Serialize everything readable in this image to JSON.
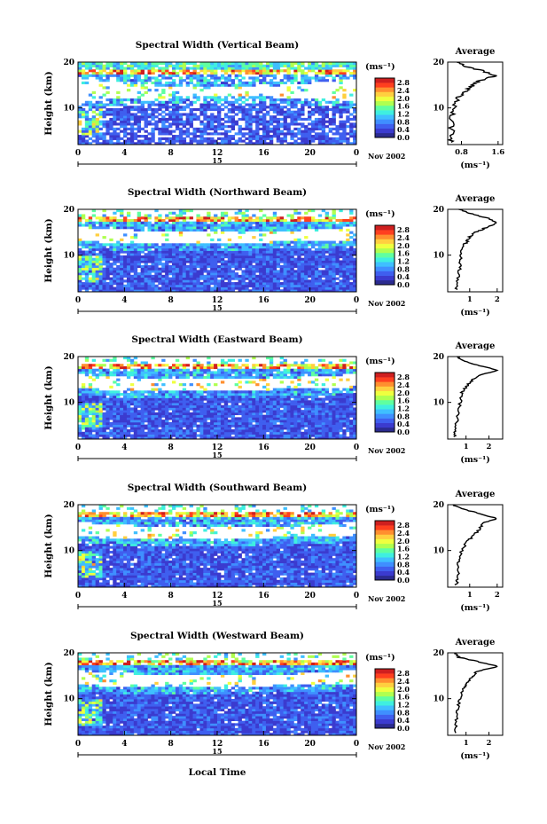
{
  "colorbar": {
    "unit": "(ms⁻¹)",
    "ticks": [
      "0.0",
      "0.4",
      "0.8",
      "1.2",
      "1.6",
      "2.0",
      "2.4",
      "2.8"
    ],
    "colors": [
      "#2b2b8f",
      "#3b3bcf",
      "#3f5fef",
      "#3f8fff",
      "#3fbfff",
      "#3fefe0",
      "#5fffa0",
      "#afff50",
      "#efff3f",
      "#ffcf3f",
      "#ff8f2f",
      "#ff3f1f",
      "#cf1f1f"
    ]
  },
  "common": {
    "x_tick_labels": [
      "0",
      "4",
      "8",
      "12",
      "16",
      "20",
      "0"
    ],
    "x_date_day": "15",
    "x_month_year": "Nov 2002",
    "xlabel": "Local Time",
    "ylabel": "Height (km)",
    "y_tick_labels": [
      "10",
      "20"
    ],
    "average_title": "Average",
    "average_xlabel": "(ms⁻¹)"
  },
  "chart_data": [
    {
      "type": "heatmap",
      "title": "Spectral Width (Vertical Beam)",
      "x_range": [
        0,
        24
      ],
      "y_range": [
        2,
        20
      ],
      "color_range": [
        0,
        3.0
      ],
      "average": {
        "type": "line",
        "title": "Average",
        "x_ticks": [
          "0.8",
          "1.6"
        ],
        "xlim": [
          0.5,
          1.7
        ],
        "profile": [
          [
            2.5,
            0.55
          ],
          [
            4,
            0.6
          ],
          [
            6,
            0.58
          ],
          [
            8,
            0.6
          ],
          [
            10,
            0.62
          ],
          [
            12,
            0.7
          ],
          [
            13,
            0.8
          ],
          [
            14,
            0.95
          ],
          [
            15,
            1.05
          ],
          [
            16,
            1.2
          ],
          [
            17,
            1.55
          ],
          [
            18,
            1.3
          ],
          [
            19,
            0.9
          ],
          [
            20,
            0.7
          ]
        ]
      }
    },
    {
      "type": "heatmap",
      "title": "Spectral Width (Northward Beam)",
      "x_range": [
        0,
        24
      ],
      "y_range": [
        2,
        20
      ],
      "color_range": [
        0,
        3.0
      ],
      "average": {
        "type": "line",
        "title": "Average",
        "x_ticks": [
          "1",
          "2"
        ],
        "xlim": [
          0.2,
          2.2
        ],
        "profile": [
          [
            2.5,
            0.5
          ],
          [
            4,
            0.55
          ],
          [
            6,
            0.6
          ],
          [
            8,
            0.65
          ],
          [
            10,
            0.7
          ],
          [
            12,
            0.75
          ],
          [
            13,
            0.9
          ],
          [
            14,
            1.0
          ],
          [
            15,
            1.2
          ],
          [
            16,
            1.6
          ],
          [
            17,
            2.0
          ],
          [
            18,
            1.7
          ],
          [
            19,
            1.1
          ],
          [
            20,
            0.6
          ]
        ]
      }
    },
    {
      "type": "heatmap",
      "title": "Spectral Width (Eastward Beam)",
      "x_range": [
        0,
        24
      ],
      "y_range": [
        2,
        20
      ],
      "color_range": [
        0,
        3.0
      ],
      "average": {
        "type": "line",
        "title": "Average",
        "x_ticks": [
          "1",
          "2"
        ],
        "xlim": [
          0.2,
          2.6
        ],
        "profile": [
          [
            2.5,
            0.5
          ],
          [
            4,
            0.55
          ],
          [
            6,
            0.6
          ],
          [
            8,
            0.65
          ],
          [
            10,
            0.75
          ],
          [
            12,
            0.8
          ],
          [
            13,
            0.95
          ],
          [
            14,
            1.1
          ],
          [
            15,
            1.3
          ],
          [
            16,
            1.6
          ],
          [
            17,
            2.4
          ],
          [
            18,
            1.6
          ],
          [
            19,
            0.9
          ],
          [
            20,
            0.6
          ]
        ]
      }
    },
    {
      "type": "heatmap",
      "title": "Spectral Width (Southward Beam)",
      "x_range": [
        0,
        24
      ],
      "y_range": [
        2,
        20
      ],
      "color_range": [
        0,
        3.0
      ],
      "average": {
        "type": "line",
        "title": "Average",
        "x_ticks": [
          "1",
          "2"
        ],
        "xlim": [
          0.2,
          2.2
        ],
        "profile": [
          [
            2.5,
            0.5
          ],
          [
            4,
            0.55
          ],
          [
            6,
            0.58
          ],
          [
            8,
            0.62
          ],
          [
            10,
            0.7
          ],
          [
            12,
            0.9
          ],
          [
            13,
            1.1
          ],
          [
            14,
            1.25
          ],
          [
            15,
            1.4
          ],
          [
            16,
            1.5
          ],
          [
            17,
            2.0
          ],
          [
            18,
            1.4
          ],
          [
            19,
            0.8
          ],
          [
            20,
            0.4
          ]
        ]
      }
    },
    {
      "type": "heatmap",
      "title": "Spectral Width (Westward Beam)",
      "x_range": [
        0,
        24
      ],
      "y_range": [
        2,
        20
      ],
      "color_range": [
        0,
        3.0
      ],
      "average": {
        "type": "line",
        "title": "Average",
        "x_ticks": [
          "1",
          "2"
        ],
        "xlim": [
          0.2,
          2.6
        ],
        "profile": [
          [
            2.5,
            0.5
          ],
          [
            4,
            0.55
          ],
          [
            6,
            0.6
          ],
          [
            8,
            0.65
          ],
          [
            10,
            0.75
          ],
          [
            12,
            0.85
          ],
          [
            13,
            1.0
          ],
          [
            14,
            1.15
          ],
          [
            15,
            1.3
          ],
          [
            16,
            1.5
          ],
          [
            17,
            2.4
          ],
          [
            18,
            1.6
          ],
          [
            19,
            0.7
          ],
          [
            20,
            0.5
          ]
        ]
      }
    }
  ]
}
